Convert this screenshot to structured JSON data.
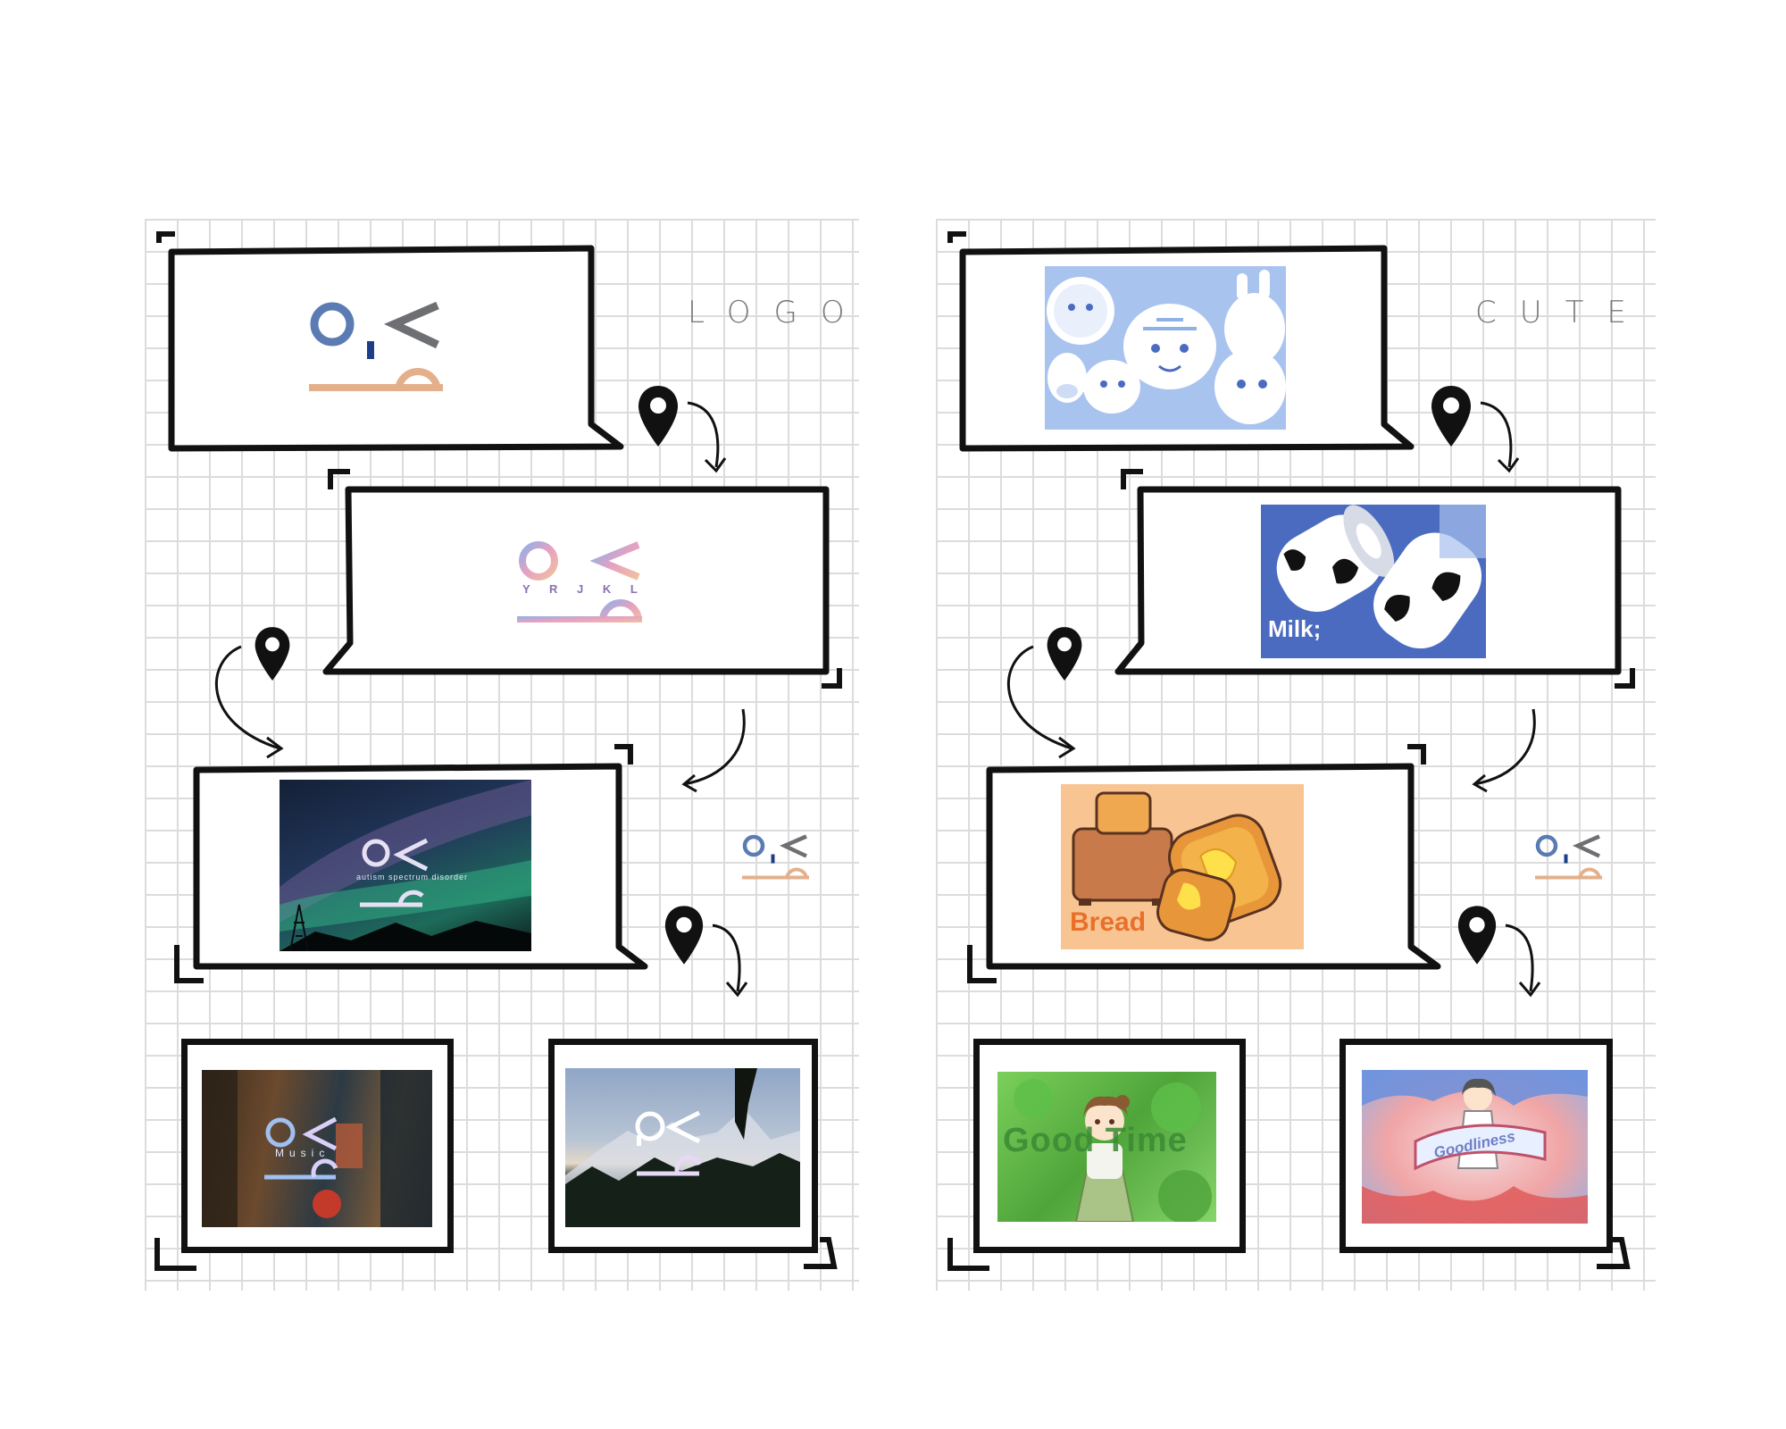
{
  "panels": {
    "left": {
      "label": "LOGO"
    },
    "right": {
      "label": "CUTE"
    }
  },
  "left": {
    "aurora_caption": "autism spectrum disorder",
    "logo_letters": "Y R J K L",
    "music_text": "Music"
  },
  "right": {
    "milk_text": "Milk;",
    "bread_text": "Bread",
    "goodtime_text": "Good Time",
    "goodliness_text": "Goodliness"
  },
  "colors": {
    "logo_blue": "#5b7bb3",
    "logo_grey": "#6d6f73",
    "logo_peach": "#e4b08c",
    "ink": "#111111",
    "cute_blue": "#8fb1e8",
    "milk_blue": "#4a6bc0",
    "bread_orange": "#f8c592"
  }
}
